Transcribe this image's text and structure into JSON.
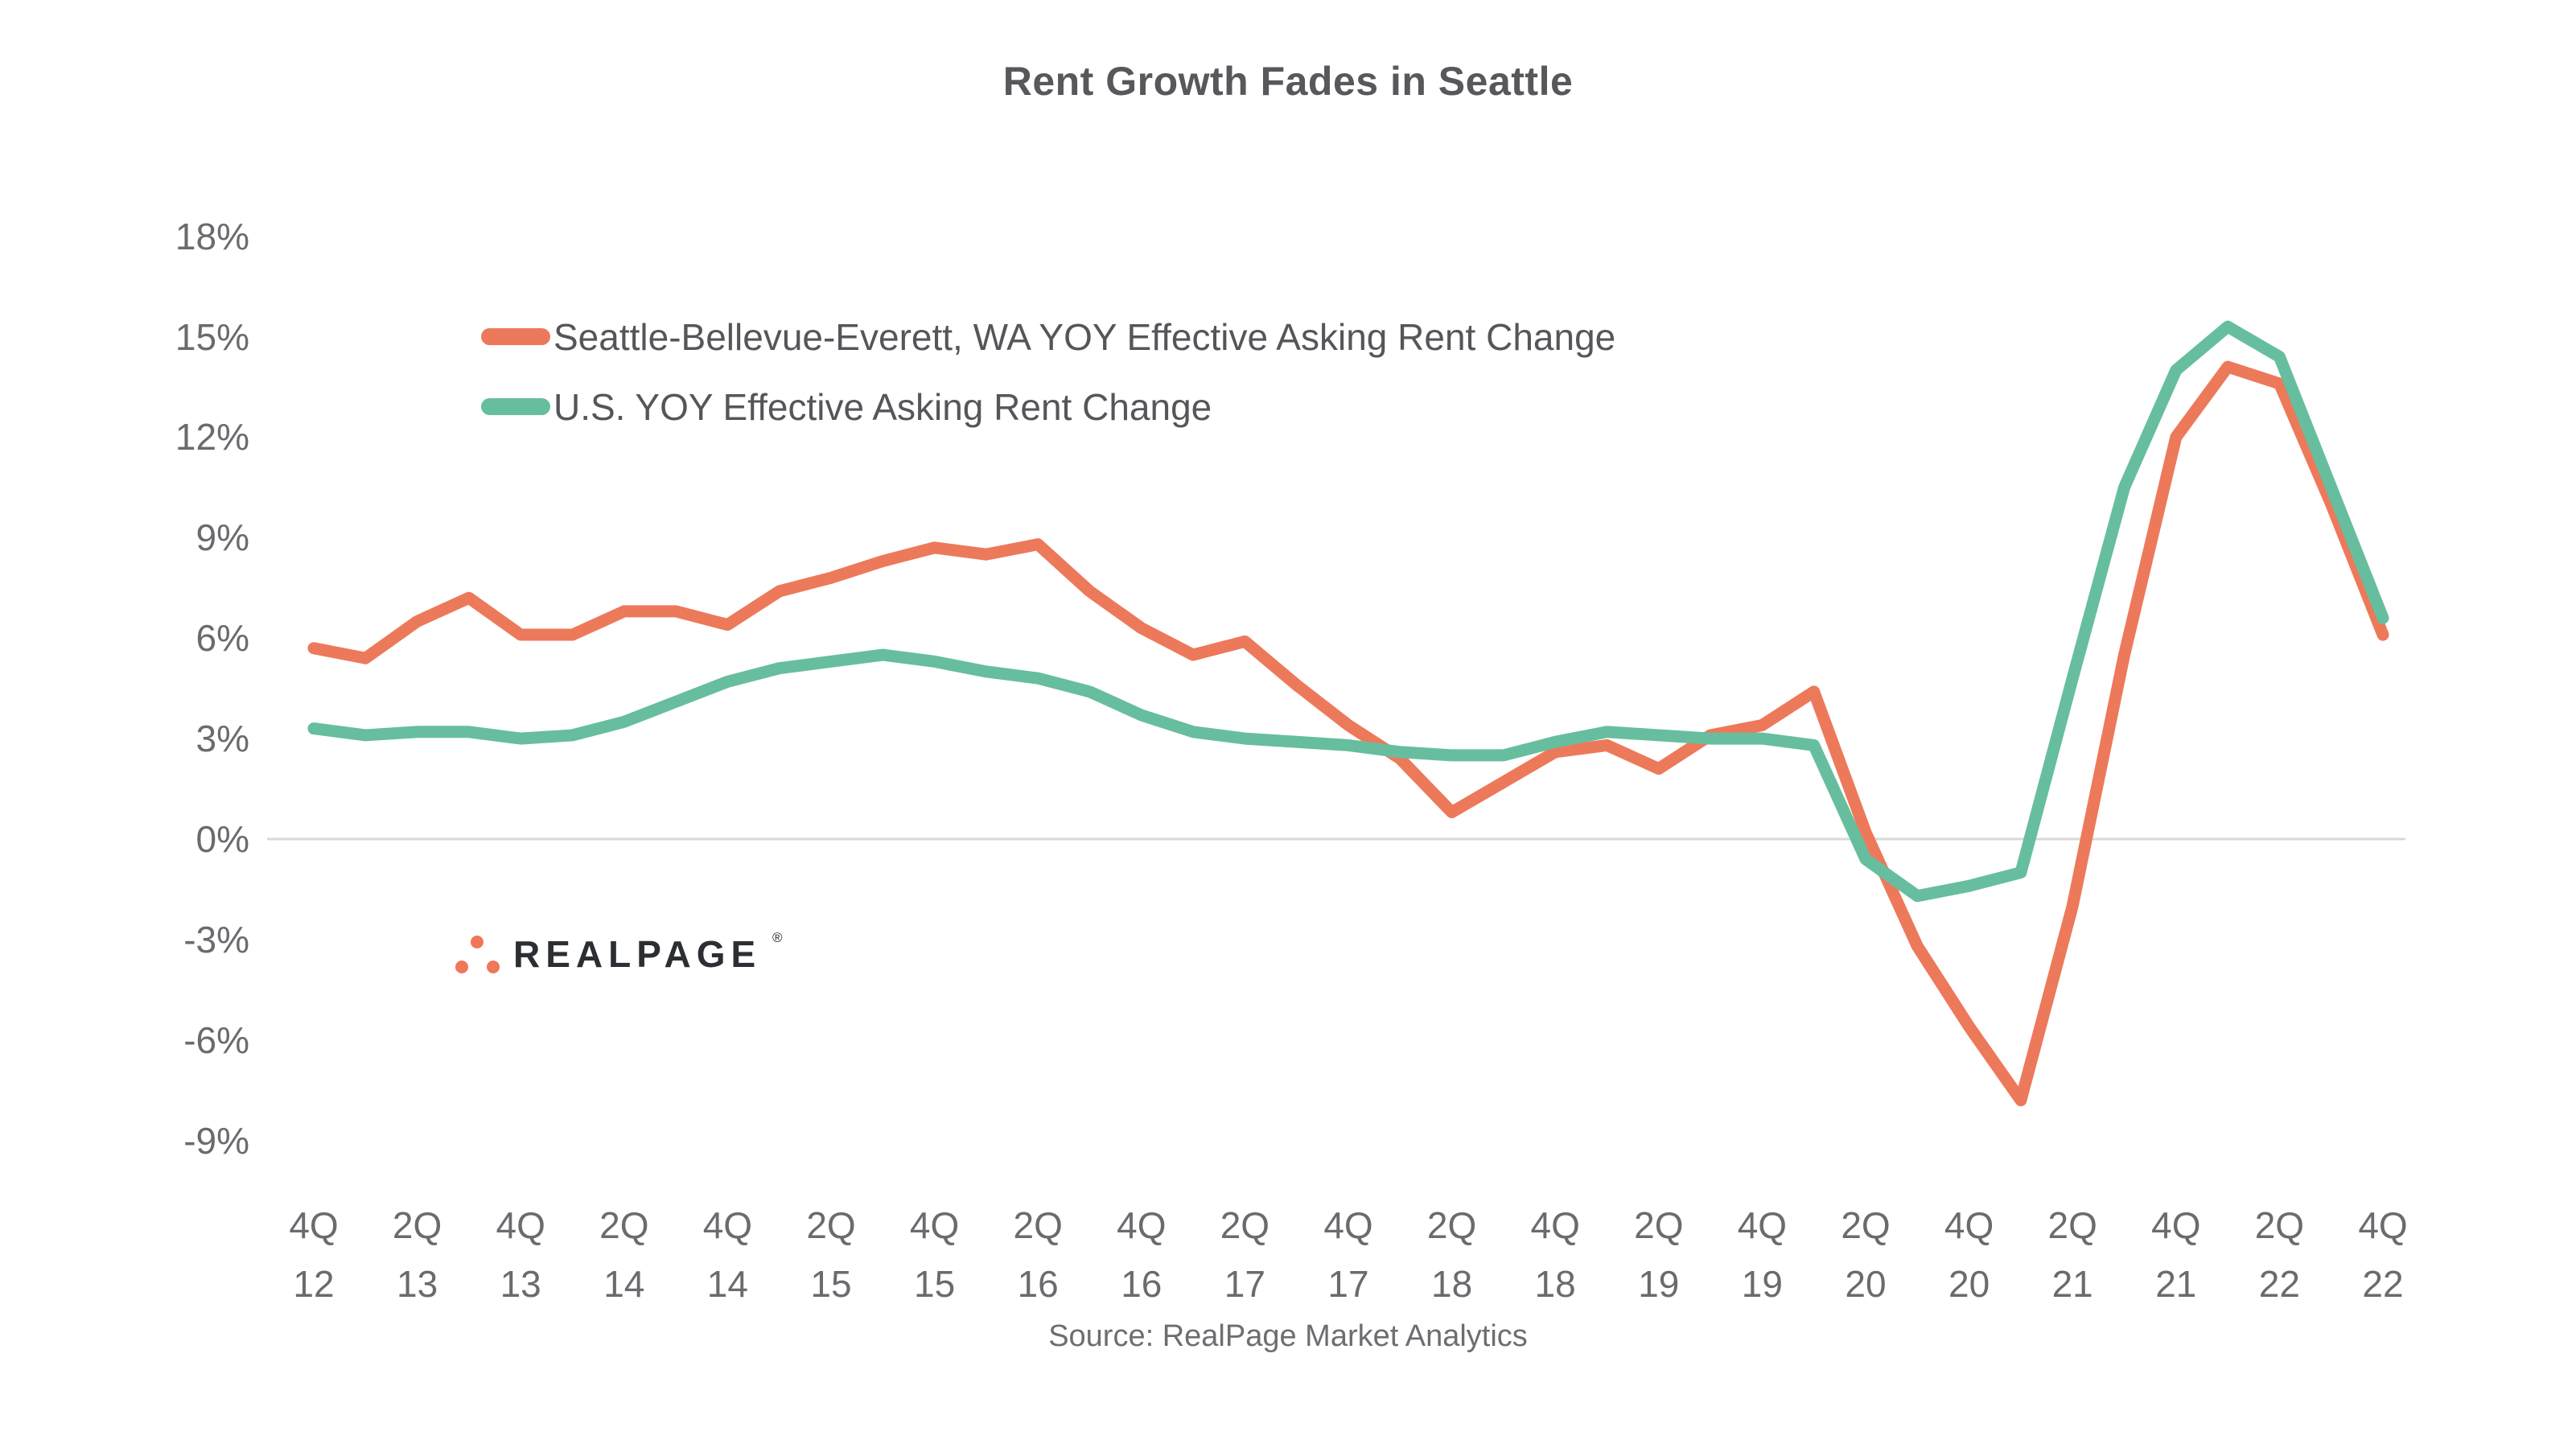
{
  "title": "Rent Growth Fades in Seattle",
  "source": "Source: RealPage Market Analytics",
  "logo": {
    "text": "REALPAGE",
    "registered": "®"
  },
  "colors": {
    "seattle_line": "#ED795B",
    "us_line": "#67BE9F",
    "title_text": "#57585B",
    "axis_text": "#6A6B6E",
    "source_text": "#6D6E71",
    "gridline": "#D9D9D9",
    "logo_text": "#2B2E33",
    "logo_dots": "#F0775A"
  },
  "legend": [
    {
      "label": "Seattle-Bellevue-Everett, WA YOY Effective Asking Rent Change",
      "color": "#ED795B"
    },
    {
      "label": "U.S. YOY Effective Asking Rent Change",
      "color": "#67BE9F"
    }
  ],
  "chart_data": {
    "type": "line",
    "title": "Rent Growth Fades in Seattle",
    "xlabel": "",
    "ylabel": "",
    "y_unit": "%",
    "ylim": [
      -9,
      18
    ],
    "y_ticks": [
      18,
      15,
      12,
      9,
      6,
      3,
      0,
      -3,
      -6,
      -9
    ],
    "gridlines": "zero-line-only",
    "legend_position": "top-left-inside",
    "x_tick_labels": [
      [
        "4Q",
        "12"
      ],
      [
        "2Q",
        "13"
      ],
      [
        "4Q",
        "13"
      ],
      [
        "2Q",
        "14"
      ],
      [
        "4Q",
        "14"
      ],
      [
        "2Q",
        "15"
      ],
      [
        "4Q",
        "15"
      ],
      [
        "2Q",
        "16"
      ],
      [
        "4Q",
        "16"
      ],
      [
        "2Q",
        "17"
      ],
      [
        "4Q",
        "17"
      ],
      [
        "2Q",
        "18"
      ],
      [
        "4Q",
        "18"
      ],
      [
        "2Q",
        "19"
      ],
      [
        "4Q",
        "19"
      ],
      [
        "2Q",
        "20"
      ],
      [
        "4Q",
        "20"
      ],
      [
        "2Q",
        "21"
      ],
      [
        "4Q",
        "21"
      ],
      [
        "2Q",
        "22"
      ],
      [
        "4Q",
        "22"
      ]
    ],
    "categories": [
      "4Q 2012",
      "1Q 2013",
      "2Q 2013",
      "3Q 2013",
      "4Q 2013",
      "1Q 2014",
      "2Q 2014",
      "3Q 2014",
      "4Q 2014",
      "1Q 2015",
      "2Q 2015",
      "3Q 2015",
      "4Q 2015",
      "1Q 2016",
      "2Q 2016",
      "3Q 2016",
      "4Q 2016",
      "1Q 2017",
      "2Q 2017",
      "3Q 2017",
      "4Q 2017",
      "1Q 2018",
      "2Q 2018",
      "3Q 2018",
      "4Q 2018",
      "1Q 2019",
      "2Q 2019",
      "3Q 2019",
      "4Q 2019",
      "1Q 2020",
      "2Q 2020",
      "3Q 2020",
      "4Q 2020",
      "1Q 2021",
      "2Q 2021",
      "3Q 2021",
      "4Q 2021",
      "1Q 2022",
      "2Q 2022",
      "3Q 2022",
      "4Q 2022"
    ],
    "series": [
      {
        "name": "Seattle-Bellevue-Everett, WA YOY Effective Asking Rent Change",
        "color": "#ED795B",
        "values": [
          5.7,
          5.4,
          6.5,
          7.2,
          6.1,
          6.1,
          6.8,
          6.8,
          6.4,
          7.4,
          7.8,
          8.3,
          8.7,
          8.5,
          8.8,
          7.4,
          6.3,
          5.5,
          5.9,
          4.6,
          3.4,
          2.4,
          0.8,
          1.7,
          2.6,
          2.8,
          2.1,
          3.1,
          3.4,
          4.4,
          0.2,
          -3.2,
          -5.6,
          -7.8,
          -2.0,
          5.5,
          12.0,
          14.1,
          13.6,
          10.0,
          6.1
        ]
      },
      {
        "name": "U.S. YOY Effective Asking Rent Change",
        "color": "#67BE9F",
        "values": [
          3.3,
          3.1,
          3.2,
          3.2,
          3.0,
          3.1,
          3.5,
          4.1,
          4.7,
          5.1,
          5.3,
          5.5,
          5.3,
          5.0,
          4.8,
          4.4,
          3.7,
          3.2,
          3.0,
          2.9,
          2.8,
          2.6,
          2.5,
          2.5,
          2.9,
          3.2,
          3.1,
          3.0,
          3.0,
          2.8,
          -0.6,
          -1.7,
          -1.4,
          -1.0,
          4.8,
          10.5,
          14.0,
          15.3,
          14.4,
          10.5,
          6.6
        ]
      }
    ]
  }
}
